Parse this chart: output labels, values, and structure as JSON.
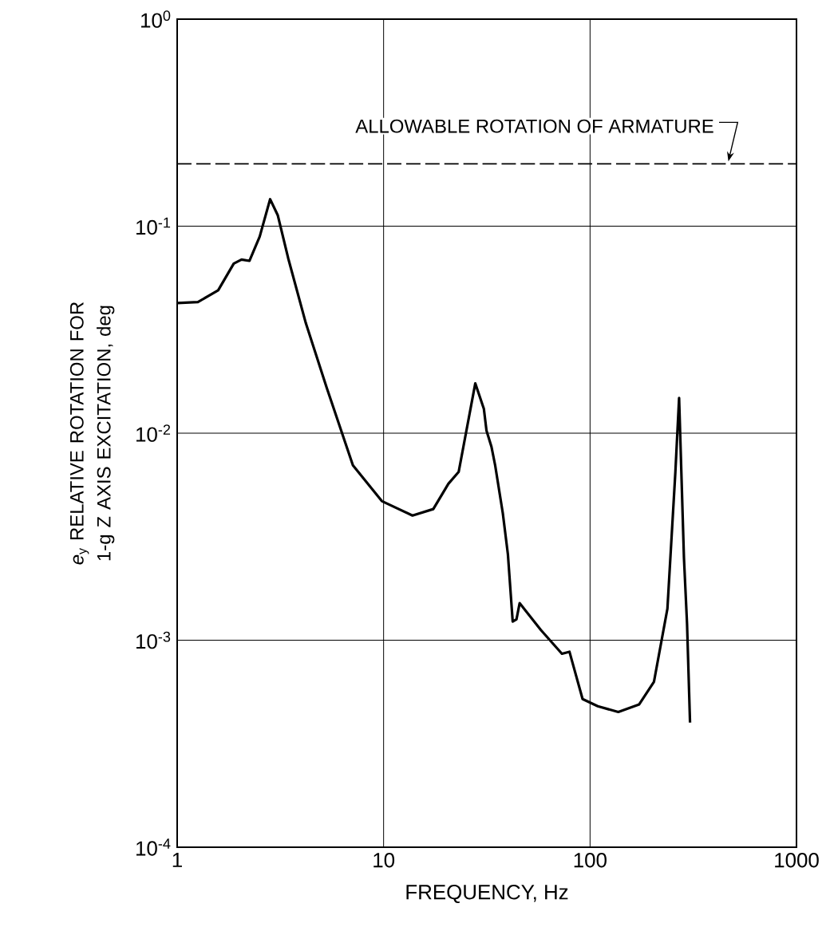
{
  "chart_data": {
    "type": "line",
    "xlabel": "FREQUENCY, Hz",
    "ylabel": "*e*$_{y}$ RELATIVE ROTATION FOR 1-g Z AXIS EXCITATION, deg",
    "log": "xy",
    "grid": true,
    "marker": "none",
    "line_style": "solid",
    "xlim": [
      1,
      1000
    ],
    "xticks": [
      1,
      10,
      100,
      1000
    ],
    "ylim": [
      0.0001,
      1
    ],
    "yticks": [
      {
        "value": 0.0001,
        "label": "10$^{-4}$"
      },
      {
        "value": 0.001,
        "label": "10$^{-3}$"
      },
      {
        "value": 0.01,
        "label": "10$^{-2}$"
      },
      {
        "value": 0.1,
        "label": "10$^{-1}$"
      },
      {
        "value": 1,
        "label": "10$^{0}$"
      }
    ],
    "ref_lines": [
      {
        "axis": "y",
        "value": 0.2,
        "label": "ALLOWABLE ROTATION OF ARMATURE",
        "line_style": "dashed",
        "color": "#000000"
      }
    ],
    "series": [
      {
        "color": "#000000",
        "x": [
          1,
          1.26,
          1.58,
          1.88,
          2.05,
          2.24,
          2.51,
          2.82,
          3.07,
          3.45,
          4.2,
          5.3,
          7.1,
          9.8,
          13.8,
          17.4,
          20.6,
          23.1,
          27.8,
          30.6,
          31.5,
          33.3,
          34.7,
          37.8,
          40,
          42.2,
          44,
          45.6,
          57.8,
          73.1,
          79.5,
          81.9,
          92,
          109,
          137,
          173,
          204,
          237,
          259,
          270,
          285,
          295,
          305
        ],
        "values": [
          0.0425,
          0.043,
          0.049,
          0.066,
          0.069,
          0.068,
          0.089,
          0.135,
          0.113,
          0.07,
          0.034,
          0.0166,
          0.007,
          0.0047,
          0.004,
          0.0043,
          0.0057,
          0.0065,
          0.0174,
          0.0131,
          0.0103,
          0.0086,
          0.007,
          0.0041,
          0.0026,
          0.00123,
          0.00126,
          0.00151,
          0.00112,
          0.00086,
          0.00088,
          0.00079,
          0.00052,
          0.00048,
          0.00045,
          0.00049,
          0.00063,
          0.00142,
          0.0065,
          0.0148,
          0.0025,
          0.0012,
          0.0004
        ]
      }
    ]
  }
}
